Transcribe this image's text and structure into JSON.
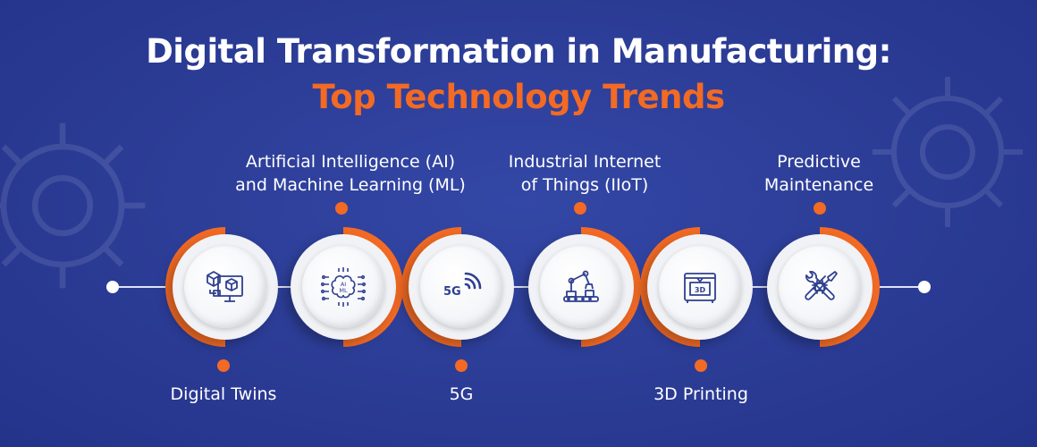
{
  "title": {
    "line1": "Digital Transformation in Manufacturing:",
    "line2": "Top Technology Trends"
  },
  "colors": {
    "background": "#2b3c94",
    "accent": "#f26a24",
    "text": "#ffffff",
    "circle": "#f1f2f5",
    "icon": "#2f3f8f"
  },
  "trends": [
    {
      "label_lines": [
        "Digital Twins"
      ],
      "label_position": "below",
      "icon": "digital-twin-icon"
    },
    {
      "label_lines": [
        "Artificial Intelligence (AI)",
        "and Machine Learning (ML)"
      ],
      "label_position": "above",
      "icon": "ai-ml-brain-icon",
      "icon_text": [
        "AI",
        "ML"
      ]
    },
    {
      "label_lines": [
        "5G"
      ],
      "label_position": "below",
      "icon": "5g-signal-icon",
      "icon_text": [
        "5G"
      ]
    },
    {
      "label_lines": [
        "Industrial Internet",
        "of Things (IIoT)"
      ],
      "label_position": "above",
      "icon": "robotic-arm-icon"
    },
    {
      "label_lines": [
        "3D Printing"
      ],
      "label_position": "below",
      "icon": "3d-printer-icon",
      "icon_text": [
        "3D"
      ]
    },
    {
      "label_lines": [
        "Predictive",
        "Maintenance"
      ],
      "label_position": "above",
      "icon": "wrench-screwdriver-icon"
    }
  ]
}
